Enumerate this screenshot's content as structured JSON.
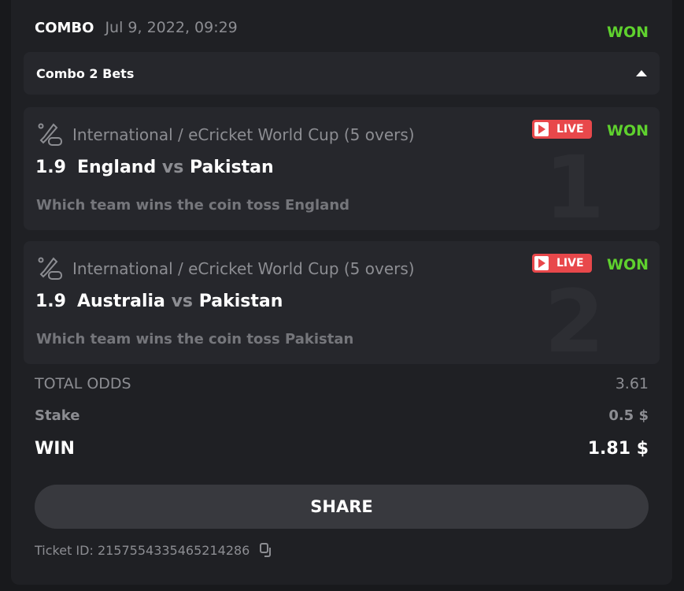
{
  "header": {
    "type": "COMBO",
    "date": "Jul 9, 2022, 09:29",
    "status": "WON"
  },
  "combo": {
    "label": "Combo 2 Bets"
  },
  "bets": [
    {
      "index": "1",
      "league": "International / eCricket World Cup (5 overs)",
      "odds": "1.9",
      "home": "England",
      "vs": "vs",
      "away": "Pakistan",
      "selection": "Which team wins the coin toss England",
      "live": "LIVE",
      "status": "WON"
    },
    {
      "index": "2",
      "league": "International / eCricket World Cup (5 overs)",
      "odds": "1.9",
      "home": "Australia",
      "vs": "vs",
      "away": "Pakistan",
      "selection": "Which team wins the coin toss Pakistan",
      "live": "LIVE",
      "status": "WON"
    }
  ],
  "summary": {
    "total_odds_label": "TOTAL ODDS",
    "total_odds": "3.61",
    "stake_label": "Stake",
    "stake": "0.5 $",
    "win_label": "WIN",
    "win": "1.81 $"
  },
  "share_label": "SHARE",
  "ticket": {
    "label": "Ticket ID: 2157554335465214286"
  },
  "colors": {
    "won": "#5fd12e",
    "live": "#e8484b"
  }
}
